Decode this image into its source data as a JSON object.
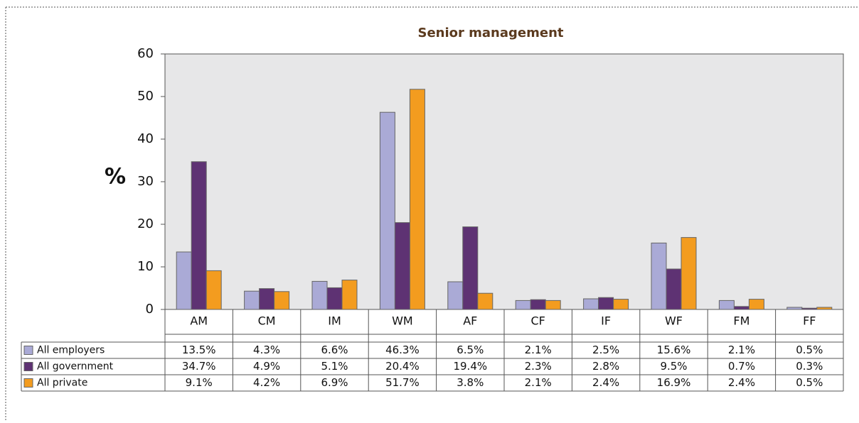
{
  "chart_data": {
    "type": "bar",
    "title": "Senior management",
    "y_label": "%",
    "categories": [
      "AM",
      "CM",
      "IM",
      "WM",
      "AF",
      "CF",
      "IF",
      "WF",
      "FM",
      "FF"
    ],
    "series": [
      {
        "name": "All employers",
        "color": "#aaaad6",
        "values": [
          13.5,
          4.3,
          6.6,
          46.3,
          6.5,
          2.1,
          2.5,
          15.6,
          2.1,
          0.5
        ],
        "value_labels": [
          "13.5%",
          "4.3%",
          "6.6%",
          "46.3%",
          "6.5%",
          "2.1%",
          "2.5%",
          "15.6%",
          "2.1%",
          "0.5%"
        ]
      },
      {
        "name": "All government",
        "color": "#5e3273",
        "values": [
          34.7,
          4.9,
          5.1,
          20.4,
          19.4,
          2.3,
          2.8,
          9.5,
          0.7,
          0.3
        ],
        "value_labels": [
          "34.7%",
          "4.9%",
          "5.1%",
          "20.4%",
          "19.4%",
          "2.3%",
          "2.8%",
          "9.5%",
          "0.7%",
          "0.3%"
        ]
      },
      {
        "name": "All private",
        "color": "#f39c1f",
        "values": [
          9.1,
          4.2,
          6.9,
          51.7,
          3.8,
          2.1,
          2.4,
          16.9,
          2.4,
          0.5
        ],
        "value_labels": [
          "9.1%",
          "4.2%",
          "6.9%",
          "51.7%",
          "3.8%",
          "2.1%",
          "2.4%",
          "16.9%",
          "2.4%",
          "0.5%"
        ]
      }
    ],
    "ylim": [
      0,
      60
    ],
    "yticks": [
      0,
      10,
      20,
      30,
      40,
      50,
      60
    ],
    "grid": false
  }
}
